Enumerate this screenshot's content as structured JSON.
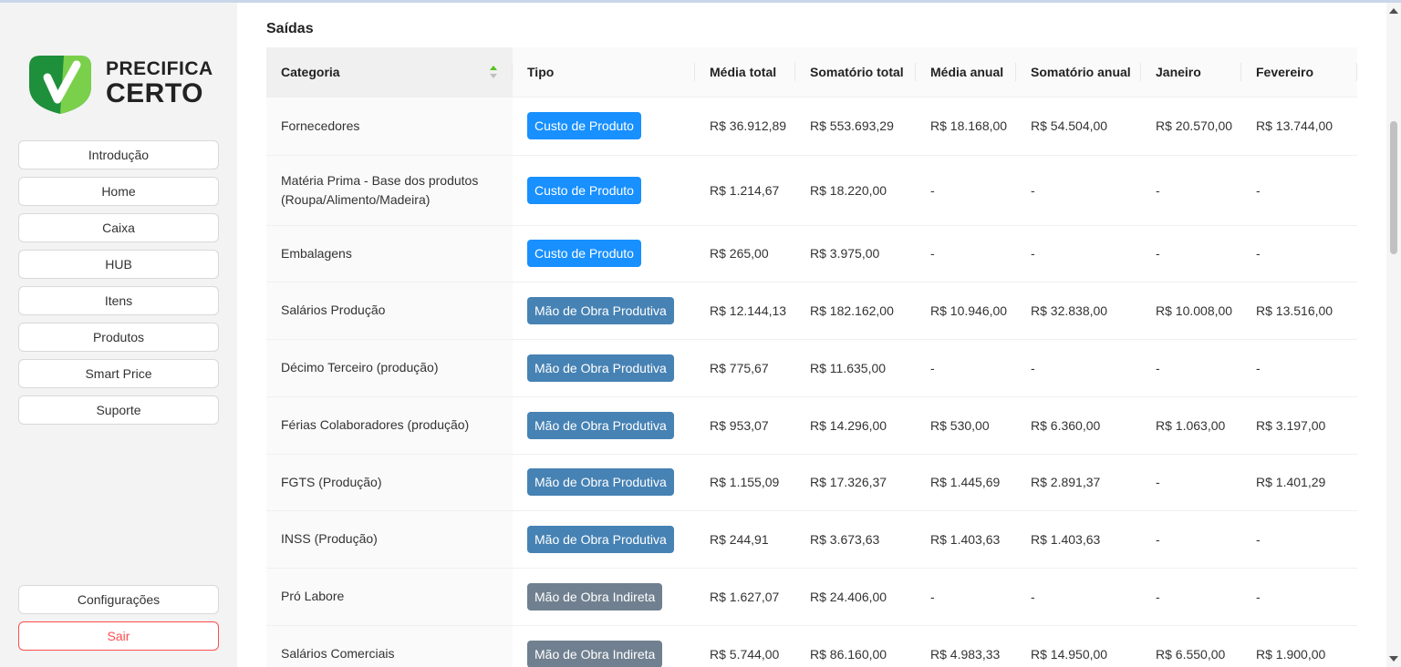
{
  "brand": {
    "line1": "PRECIFICA",
    "line2": "CERTO",
    "colors": {
      "dark_green": "#1e8f3a",
      "light_green": "#7ad04b",
      "check": "#ffffff"
    }
  },
  "sidebar": {
    "items": [
      {
        "label": "Introdução"
      },
      {
        "label": "Home"
      },
      {
        "label": "Caixa"
      },
      {
        "label": "HUB"
      },
      {
        "label": "Itens"
      },
      {
        "label": "Produtos"
      },
      {
        "label": "Smart Price"
      },
      {
        "label": "Suporte"
      }
    ],
    "settings_label": "Configurações",
    "logout_label": "Sair"
  },
  "main": {
    "section_title": "Saídas",
    "table": {
      "columns": [
        "Categoria",
        "Tipo",
        "Média total",
        "Somatório total",
        "Média anual",
        "Somatório anual",
        "Janeiro",
        "Fevereiro"
      ],
      "sorted_column": "Categoria",
      "rows": [
        [
          "Fornecedores",
          "Custo de Produto",
          "R$ 36.912,89",
          "R$ 553.693,29",
          "R$ 18.168,00",
          "R$ 54.504,00",
          "R$ 20.570,00",
          "R$ 13.744,00"
        ],
        [
          "Matéria Prima - Base dos produtos (Roupa/Alimento/Madeira)",
          "Custo de Produto",
          "R$ 1.214,67",
          "R$ 18.220,00",
          "-",
          "-",
          "-",
          "-"
        ],
        [
          "Embalagens",
          "Custo de Produto",
          "R$ 265,00",
          "R$ 3.975,00",
          "-",
          "-",
          "-",
          "-"
        ],
        [
          "Salários Produção",
          "Mão de Obra Produtiva",
          "R$ 12.144,13",
          "R$ 182.162,00",
          "R$ 10.946,00",
          "R$ 32.838,00",
          "R$ 10.008,00",
          "R$ 13.516,00"
        ],
        [
          "Décimo Terceiro (produção)",
          "Mão de Obra Produtiva",
          "R$ 775,67",
          "R$ 11.635,00",
          "-",
          "-",
          "-",
          "-"
        ],
        [
          "Férias Colaboradores (produção)",
          "Mão de Obra Produtiva",
          "R$ 953,07",
          "R$ 14.296,00",
          "R$ 530,00",
          "R$ 6.360,00",
          "R$ 1.063,00",
          "R$ 3.197,00"
        ],
        [
          "FGTS (Produção)",
          "Mão de Obra Produtiva",
          "R$ 1.155,09",
          "R$ 17.326,37",
          "R$ 1.445,69",
          "R$ 2.891,37",
          "-",
          "R$ 1.401,29"
        ],
        [
          "INSS (Produção)",
          "Mão de Obra Produtiva",
          "R$ 244,91",
          "R$ 3.673,63",
          "R$ 1.403,63",
          "R$ 1.403,63",
          "-",
          "-"
        ],
        [
          "Pró Labore",
          "Mão de Obra Indireta",
          "R$ 1.627,07",
          "R$ 24.406,00",
          "-",
          "-",
          "-",
          "-"
        ],
        [
          "Salários Comerciais",
          "Mão de Obra Indireta",
          "R$ 5.744,00",
          "R$ 86.160,00",
          "R$ 4.983,33",
          "R$ 14.950,00",
          "R$ 6.550,00",
          "R$ 1.900,00"
        ]
      ],
      "tag_colors": {
        "Custo de Produto": "#1890ff",
        "Mão de Obra Produtiva": "#4682b4",
        "Mão de Obra Indireta": "#708090"
      }
    }
  }
}
